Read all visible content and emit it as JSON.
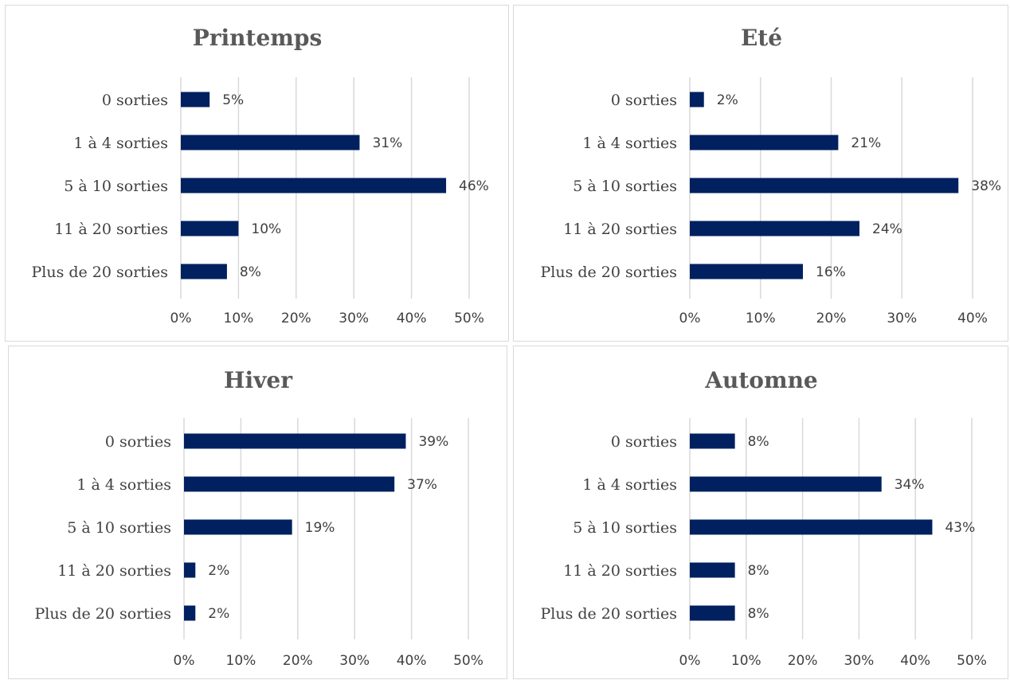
{
  "chart_data": [
    {
      "type": "bar",
      "orientation": "horizontal",
      "title": "Printemps",
      "categories": [
        "0 sorties",
        "1 à 4 sorties",
        "5 à 10 sorties",
        "11 à 20 sorties",
        "Plus de 20 sorties"
      ],
      "values": [
        5,
        31,
        46,
        10,
        8
      ],
      "value_labels": [
        "5%",
        "31%",
        "46%",
        "10%",
        "8%"
      ],
      "xlim": [
        0,
        50
      ],
      "xticks": [
        "0%",
        "10%",
        "20%",
        "30%",
        "40%",
        "50%"
      ],
      "grid": "vertical",
      "bar_color": "#002060"
    },
    {
      "type": "bar",
      "orientation": "horizontal",
      "title": "Eté",
      "categories": [
        "0 sorties",
        "1 à 4 sorties",
        "5 à 10 sorties",
        "11 à 20 sorties",
        "Plus de 20 sorties"
      ],
      "values": [
        2,
        21,
        38,
        24,
        16
      ],
      "value_labels": [
        "2%",
        "21%",
        "38%",
        "24%",
        "16%"
      ],
      "xlim": [
        0,
        40
      ],
      "xticks": [
        "0%",
        "10%",
        "20%",
        "30%",
        "40%"
      ],
      "grid": "vertical",
      "bar_color": "#002060"
    },
    {
      "type": "bar",
      "orientation": "horizontal",
      "title": "Hiver",
      "categories": [
        "0 sorties",
        "1 à 4 sorties",
        "5 à 10 sorties",
        "11 à 20 sorties",
        "Plus de 20 sorties"
      ],
      "values": [
        39,
        37,
        19,
        2,
        2
      ],
      "value_labels": [
        "39%",
        "37%",
        "19%",
        "2%",
        "2%"
      ],
      "xlim": [
        0,
        50
      ],
      "xticks": [
        "0%",
        "10%",
        "20%",
        "30%",
        "40%",
        "50%"
      ],
      "grid": "vertical",
      "bar_color": "#002060"
    },
    {
      "type": "bar",
      "orientation": "horizontal",
      "title": "Automne",
      "categories": [
        "0 sorties",
        "1 à 4 sorties",
        "5 à 10 sorties",
        "11 à 20 sorties",
        "Plus de 20 sorties"
      ],
      "values": [
        8,
        34,
        43,
        8,
        8
      ],
      "value_labels": [
        "8%",
        "34%",
        "43%",
        "8%",
        "8%"
      ],
      "xlim": [
        0,
        50
      ],
      "xticks": [
        "0%",
        "10%",
        "20%",
        "30%",
        "40%",
        "50%"
      ],
      "grid": "vertical",
      "bar_color": "#002060"
    }
  ]
}
